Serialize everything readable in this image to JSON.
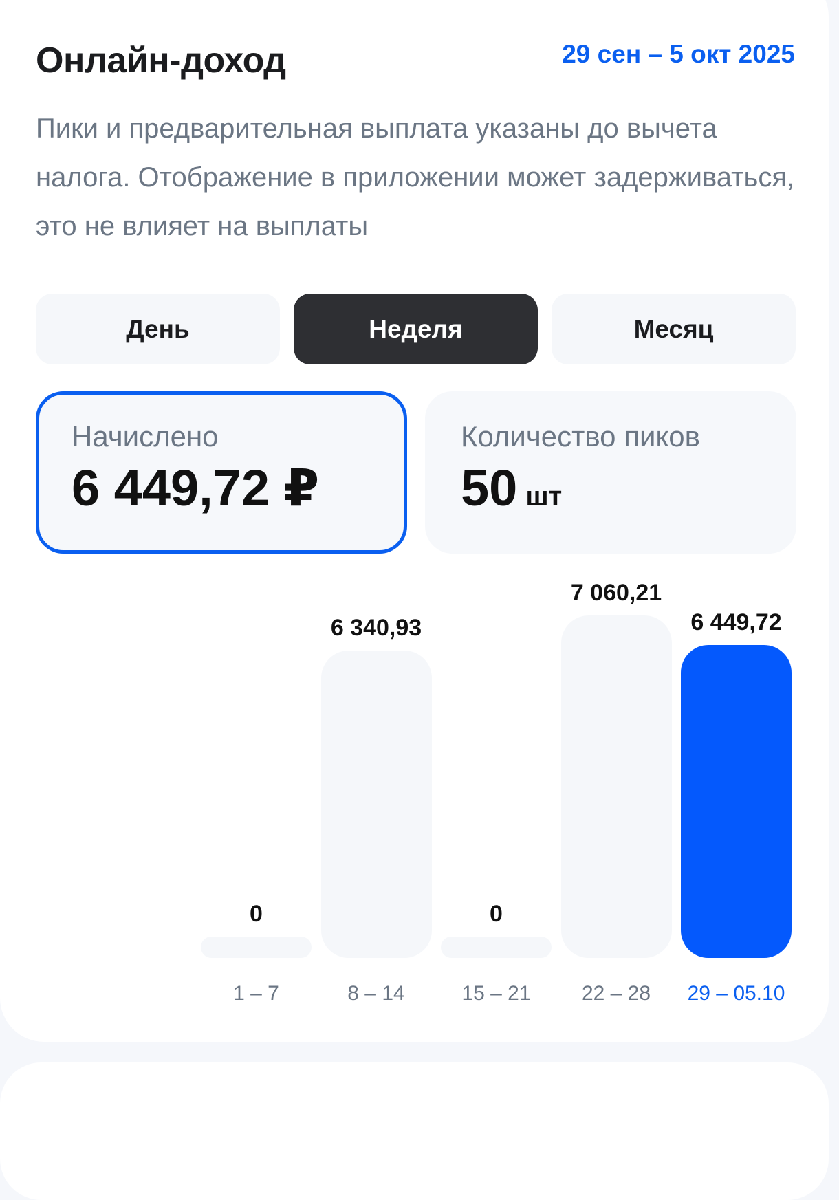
{
  "header": {
    "title": "Онлайн-доход",
    "date_range": "29 сен – 5 окт 2025"
  },
  "description": "Пики и предварительная выплата указаны до вычета налога. Отображение в приложении может задерживаться, это не влияет на выплаты",
  "period_tabs": [
    {
      "label": "День",
      "active": false
    },
    {
      "label": "Неделя",
      "active": true
    },
    {
      "label": "Месяц",
      "active": false
    }
  ],
  "stats": {
    "accrued": {
      "label": "Начислено",
      "value": "6 449,72 ₽",
      "selected": true
    },
    "peaks": {
      "label": "Количество пиков",
      "value": "50",
      "unit": "шт",
      "selected": false
    }
  },
  "colors": {
    "accent": "#0459fd",
    "bar_inactive": "#f5f7fa",
    "text_secondary": "#6b7684"
  },
  "chart_data": {
    "type": "bar",
    "categories": [
      "1 – 7",
      "8 – 14",
      "15 – 21",
      "22 – 28",
      "29 – 05.10"
    ],
    "values": [
      0,
      6340.93,
      0,
      7060.21,
      6449.72
    ],
    "value_labels": [
      "0",
      "6 340,93",
      "0",
      "7 060,21",
      "6 449,72"
    ],
    "highlighted_index": 4
  }
}
